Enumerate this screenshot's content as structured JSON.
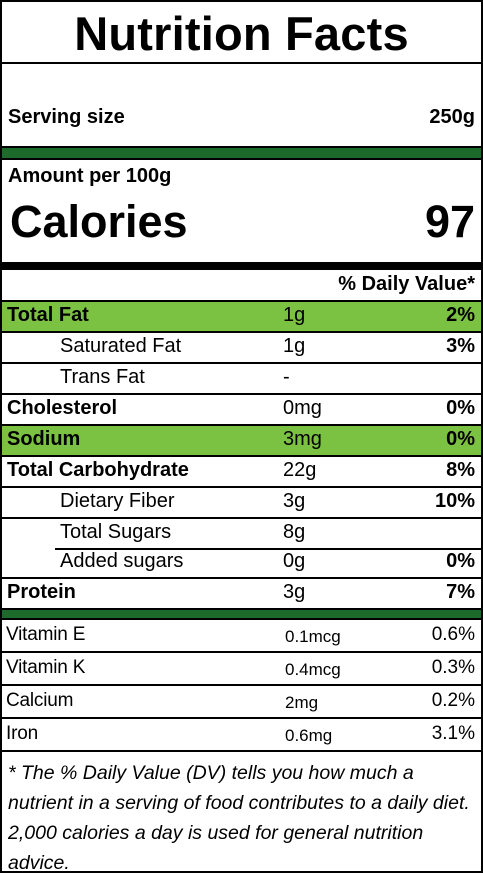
{
  "title": "Nutrition Facts",
  "serving": {
    "label": "Serving size",
    "value": "250g"
  },
  "amount_per": "Amount per 100g",
  "calories": {
    "label": "Calories",
    "value": "97"
  },
  "dv_header": "% Daily Value*",
  "nutrients": [
    {
      "name": "Total Fat",
      "amount": "1g",
      "dv": "2%"
    },
    {
      "name": "Saturated Fat",
      "amount": "1g",
      "dv": "3%"
    },
    {
      "name": "Trans Fat",
      "amount": "-",
      "dv": ""
    },
    {
      "name": "Cholesterol",
      "amount": "0mg",
      "dv": "0%"
    },
    {
      "name": "Sodium",
      "amount": "3mg",
      "dv": "0%"
    },
    {
      "name": "Total Carbohydrate",
      "amount": "22g",
      "dv": "8%"
    },
    {
      "name": "Dietary Fiber",
      "amount": "3g",
      "dv": "10%"
    },
    {
      "name": "Total Sugars",
      "amount": "8g",
      "dv": ""
    },
    {
      "name": "Added sugars",
      "amount": "0g",
      "dv": "0%"
    },
    {
      "name": "Protein",
      "amount": "3g",
      "dv": "7%"
    }
  ],
  "vitamins": [
    {
      "name": "Vitamin E",
      "amount": "0.1mcg",
      "dv": "0.6%"
    },
    {
      "name": "Vitamin K",
      "amount": "0.4mcg",
      "dv": "0.3%"
    },
    {
      "name": "Calcium",
      "amount": "2mg",
      "dv": "0.2%"
    },
    {
      "name": "Iron",
      "amount": "0.6mg",
      "dv": "3.1%"
    }
  ],
  "footnote": "* The % Daily Value (DV) tells you how much a nutrient in a serving of food contributes to a daily diet. 2,000 calories a day is used for general nutrition advice.",
  "colors": {
    "dark_green": "#1d6b2a",
    "highlight_green": "#7cc242",
    "border": "#000000"
  }
}
